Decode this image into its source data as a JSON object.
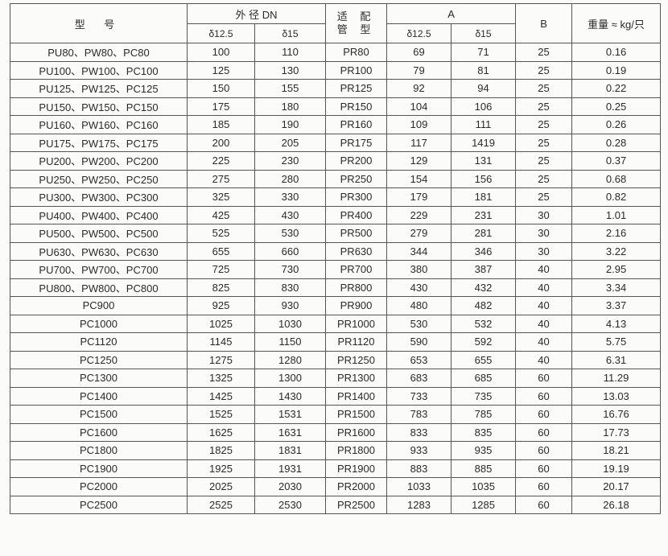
{
  "header": {
    "model": "型 号",
    "outer_diameter": "外 径 DN",
    "pipe_type_line1": "适 配",
    "pipe_type_line2": "管 型",
    "a": "A",
    "b": "B",
    "weight": "重量 ≈ kg/只",
    "delta_125": "δ12.5",
    "delta_15": "δ15"
  },
  "rows": [
    [
      "PU80、PW80、PC80",
      "100",
      "110",
      "PR80",
      "69",
      "71",
      "25",
      "0.16"
    ],
    [
      "PU100、PW100、PC100",
      "125",
      "130",
      "PR100",
      "79",
      "81",
      "25",
      "0.19"
    ],
    [
      "PU125、PW125、PC125",
      "150",
      "155",
      "PR125",
      "92",
      "94",
      "25",
      "0.22"
    ],
    [
      "PU150、PW150、PC150",
      "175",
      "180",
      "PR150",
      "104",
      "106",
      "25",
      "0.25"
    ],
    [
      "PU160、PW160、PC160",
      "185",
      "190",
      "PR160",
      "109",
      "111",
      "25",
      "0.26"
    ],
    [
      "PU175、PW175、PC175",
      "200",
      "205",
      "PR175",
      "117",
      "1419",
      "25",
      "0.28"
    ],
    [
      "PU200、PW200、PC200",
      "225",
      "230",
      "PR200",
      "129",
      "131",
      "25",
      "0.37"
    ],
    [
      "PU250、PW250、PC250",
      "275",
      "280",
      "PR250",
      "154",
      "156",
      "25",
      "0.68"
    ],
    [
      "PU300、PW300、PC300",
      "325",
      "330",
      "PR300",
      "179",
      "181",
      "25",
      "0.82"
    ],
    [
      "PU400、PW400、PC400",
      "425",
      "430",
      "PR400",
      "229",
      "231",
      "30",
      "1.01"
    ],
    [
      "PU500、PW500、PC500",
      "525",
      "530",
      "PR500",
      "279",
      "281",
      "30",
      "2.16"
    ],
    [
      "PU630、PW630、PC630",
      "655",
      "660",
      "PR630",
      "344",
      "346",
      "30",
      "3.22"
    ],
    [
      "PU700、PW700、PC700",
      "725",
      "730",
      "PR700",
      "380",
      "387",
      "40",
      "2.95"
    ],
    [
      "PU800、PW800、PC800",
      "825",
      "830",
      "PR800",
      "430",
      "432",
      "40",
      "3.34"
    ],
    [
      "PC900",
      "925",
      "930",
      "PR900",
      "480",
      "482",
      "40",
      "3.37"
    ],
    [
      "PC1000",
      "1025",
      "1030",
      "PR1000",
      "530",
      "532",
      "40",
      "4.13"
    ],
    [
      "PC1120",
      "1145",
      "1150",
      "PR1120",
      "590",
      "592",
      "40",
      "5.75"
    ],
    [
      "PC1250",
      "1275",
      "1280",
      "PR1250",
      "653",
      "655",
      "40",
      "6.31"
    ],
    [
      "PC1300",
      "1325",
      "1300",
      "PR1300",
      "683",
      "685",
      "60",
      "11.29"
    ],
    [
      "PC1400",
      "1425",
      "1430",
      "PR1400",
      "733",
      "735",
      "60",
      "13.03"
    ],
    [
      "PC1500",
      "1525",
      "1531",
      "PR1500",
      "783",
      "785",
      "60",
      "16.76"
    ],
    [
      "PC1600",
      "1625",
      "1631",
      "PR1600",
      "833",
      "835",
      "60",
      "17.73"
    ],
    [
      "PC1800",
      "1825",
      "1831",
      "PR1800",
      "933",
      "935",
      "60",
      "18.21"
    ],
    [
      "PC1900",
      "1925",
      "1931",
      "PR1900",
      "883",
      "885",
      "60",
      "19.19"
    ],
    [
      "PC2000",
      "2025",
      "2030",
      "PR2000",
      "1033",
      "1035",
      "60",
      "20.17"
    ],
    [
      "PC2500",
      "2525",
      "2530",
      "PR2500",
      "1283",
      "1285",
      "60",
      "26.18"
    ]
  ]
}
